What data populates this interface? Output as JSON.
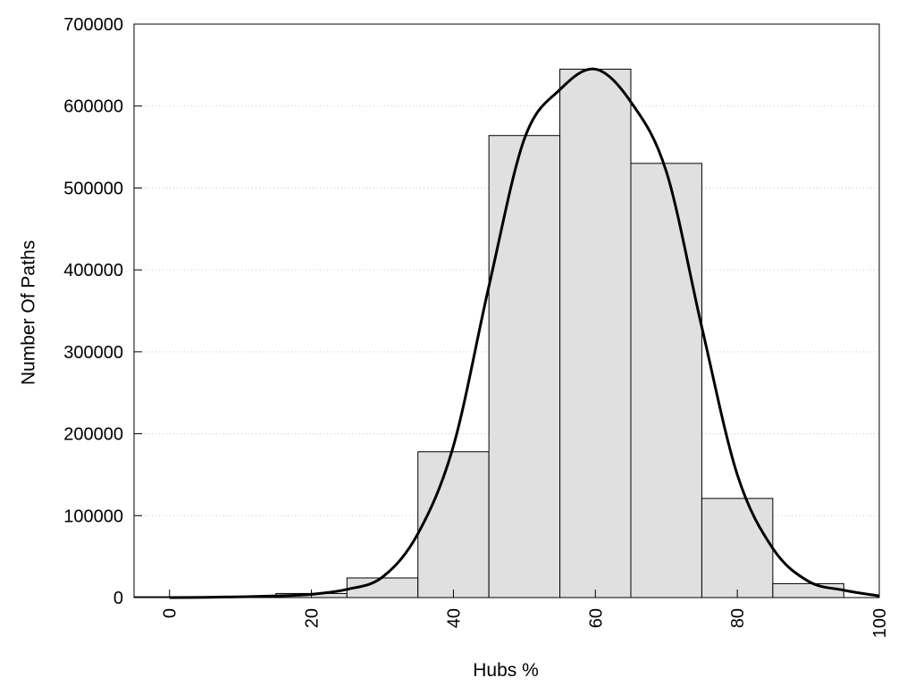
{
  "chart_data": {
    "type": "bar",
    "title": "",
    "xlabel": "Hubs %",
    "ylabel": "Number Of Paths",
    "xlim": [
      -5,
      100
    ],
    "ylim": [
      0,
      700000
    ],
    "grid": true,
    "x_ticks": [
      0,
      20,
      40,
      60,
      80,
      100
    ],
    "y_ticks": [
      0,
      100000,
      200000,
      300000,
      400000,
      500000,
      600000,
      700000
    ],
    "bin_width": 10,
    "bins": [
      {
        "center": 0,
        "value": 1000
      },
      {
        "center": 10,
        "value": 1000
      },
      {
        "center": 20,
        "value": 5000
      },
      {
        "center": 30,
        "value": 24000
      },
      {
        "center": 40,
        "value": 178000
      },
      {
        "center": 50,
        "value": 564000
      },
      {
        "center": 60,
        "value": 645000
      },
      {
        "center": 70,
        "value": 530000
      },
      {
        "center": 80,
        "value": 121000
      },
      {
        "center": 90,
        "value": 17000
      }
    ],
    "curve": {
      "x": [
        0,
        5,
        10,
        15,
        20,
        25,
        30,
        35,
        40,
        45,
        50,
        55,
        60,
        65,
        70,
        75,
        80,
        85,
        90,
        95,
        100
      ],
      "y": [
        0,
        300,
        1000,
        2000,
        4000,
        10000,
        25000,
        78000,
        185000,
        380000,
        560000,
        620000,
        645000,
        605000,
        520000,
        330000,
        150000,
        60000,
        20000,
        9000,
        2000
      ]
    },
    "colors": {
      "bar_fill": "#e0e0e0",
      "bar_stroke": "#000000",
      "curve": "#000000",
      "grid": "#c8c8c8"
    }
  }
}
